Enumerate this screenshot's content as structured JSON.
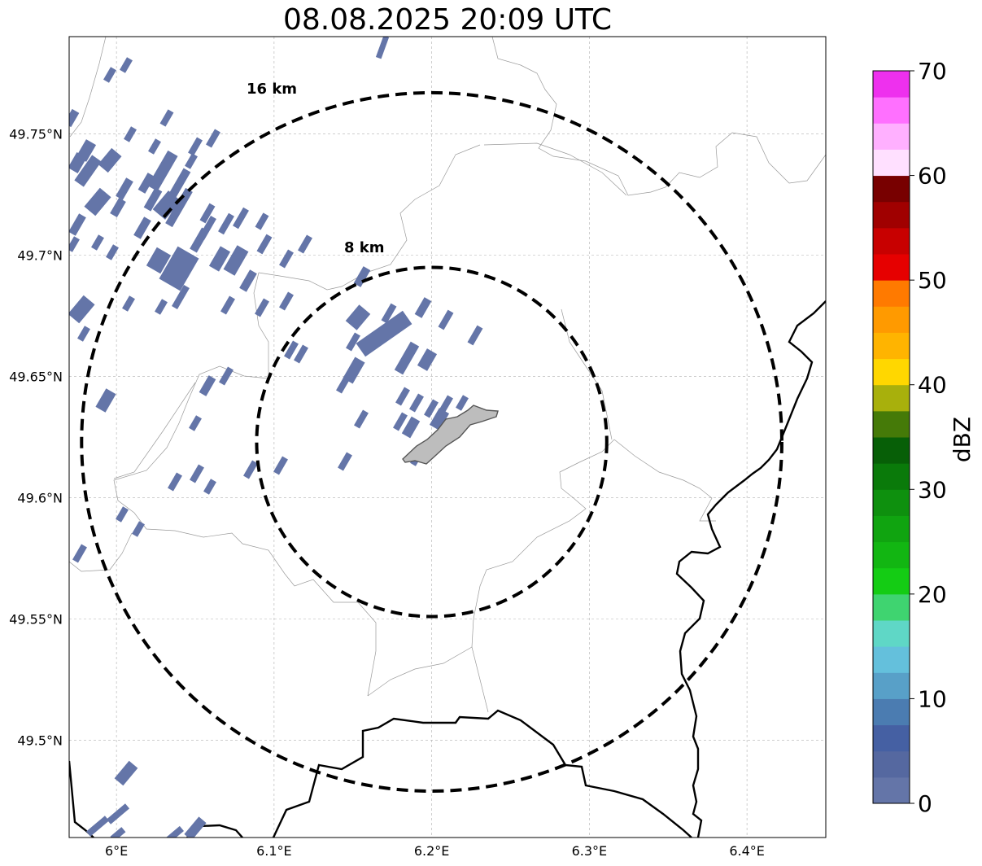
{
  "title": "08.08.2025 20:09 UTC",
  "map": {
    "lon_range": [
      5.97,
      6.45
    ],
    "lat_range": [
      49.46,
      49.79
    ],
    "lat_ticks": [
      {
        "value": 49.75,
        "label": "49.75°N"
      },
      {
        "value": 49.7,
        "label": "49.7°N"
      },
      {
        "value": 49.65,
        "label": "49.65°N"
      },
      {
        "value": 49.6,
        "label": "49.6°N"
      },
      {
        "value": 49.55,
        "label": "49.55°N"
      },
      {
        "value": 49.5,
        "label": "49.5°N"
      }
    ],
    "lon_ticks": [
      {
        "value": 6.0,
        "label": "6°E"
      },
      {
        "value": 6.1,
        "label": "6.1°E"
      },
      {
        "value": 6.2,
        "label": "6.2°E"
      },
      {
        "value": 6.3,
        "label": "6.3°E"
      },
      {
        "value": 6.4,
        "label": "6.4°E"
      }
    ],
    "center": {
      "lon": 6.2,
      "lat": 49.623
    },
    "rings": [
      {
        "label": "8 km",
        "radius_km": 8
      },
      {
        "label": "16 km",
        "radius_km": 16
      }
    ]
  },
  "colorbar": {
    "label": "dBZ",
    "min": 0,
    "max": 70,
    "tick_labels": [
      "0",
      "10",
      "20",
      "30",
      "40",
      "50",
      "60",
      "70"
    ],
    "colors": [
      "#6475a8",
      "#5568a0",
      "#4560a3",
      "#4b7cb1",
      "#58a0c8",
      "#64c0dc",
      "#5fd7c6",
      "#3fd470",
      "#14cc14",
      "#12b612",
      "#10a410",
      "#0e900e",
      "#0a7a0a",
      "#075f07",
      "#457a08",
      "#a8b00c",
      "#ffd700",
      "#ffb400",
      "#ff9a00",
      "#ff7a00",
      "#e60000",
      "#c80000",
      "#a00000",
      "#780000",
      "#ffe0ff",
      "#ffb0ff",
      "#ff70ff",
      "#ee30ee"
    ]
  },
  "echo_color": "#6475a8",
  "town_color": "#bdbdbd"
}
